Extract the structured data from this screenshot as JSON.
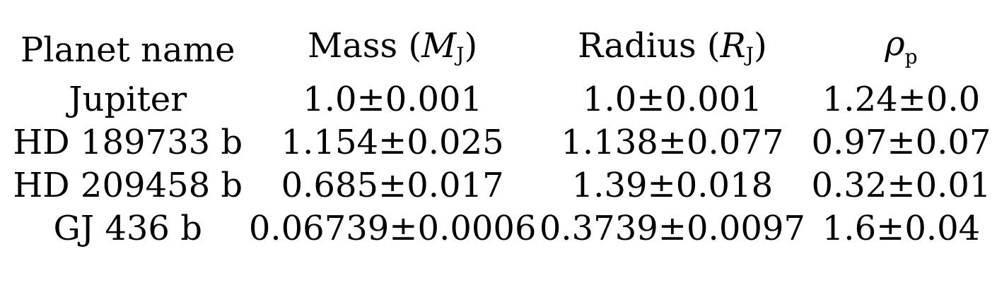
{
  "table": {
    "headers": [
      {
        "text": "Planet name"
      },
      {
        "prefix": "Mass (",
        "symbol": "M",
        "sub": "J",
        "suffix": ")"
      },
      {
        "prefix": "Radius (",
        "symbol": "R",
        "sub": "J",
        "suffix": ")"
      },
      {
        "prefix": "",
        "symbol": "ρ",
        "sub": "p",
        "suffix": ""
      }
    ],
    "rows": [
      [
        "Jupiter",
        "1.0±0.001",
        "1.0±0.001",
        "1.24±0.0"
      ],
      [
        "HD 189733 b",
        "1.154±0.025",
        "1.138±0.077",
        "0.97±0.07"
      ],
      [
        "HD 209458 b",
        "0.685±0.017",
        "1.39±0.018",
        "0.32±0.01"
      ],
      [
        "GJ 436 b",
        "0.06739±0.0006",
        "0.3739±0.0097",
        "1.6±0.04"
      ]
    ]
  }
}
